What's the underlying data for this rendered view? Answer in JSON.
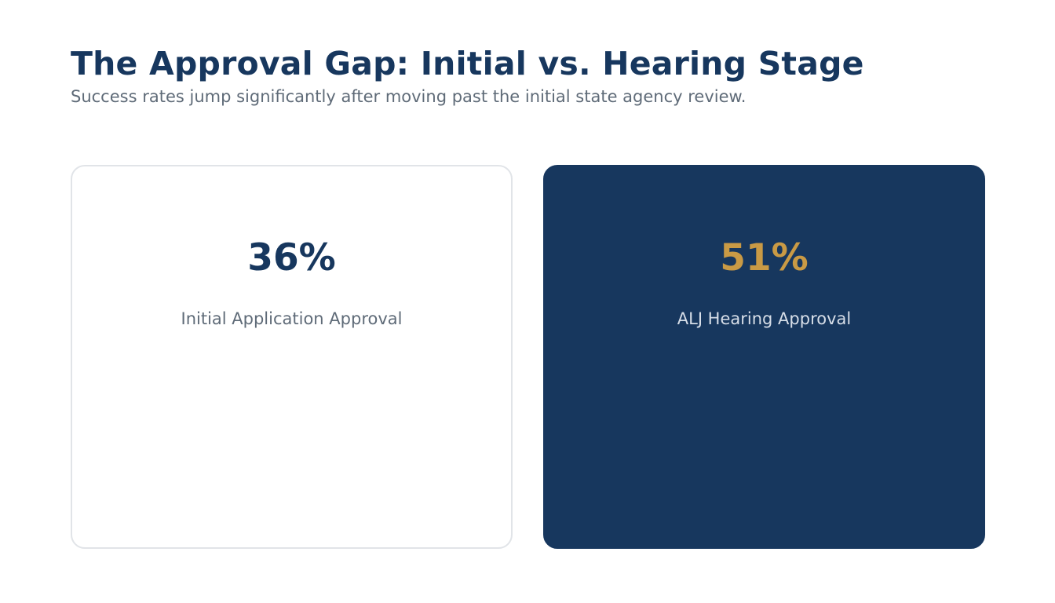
{
  "header": {
    "title": "The Approval Gap: Initial vs. Hearing Stage",
    "subtitle": "Success rates jump significantly after moving past the initial state agency review."
  },
  "cards": [
    {
      "value": "36%",
      "label": "Initial Application Approval",
      "value_color": "#17375e",
      "background": "#ffffff"
    },
    {
      "value": "51%",
      "label": "ALJ Hearing Approval",
      "value_color": "#c99a45",
      "background": "#17375e"
    }
  ],
  "colors": {
    "primary": "#17375e",
    "accent": "#c99a45",
    "muted_text": "#5f6b78"
  }
}
